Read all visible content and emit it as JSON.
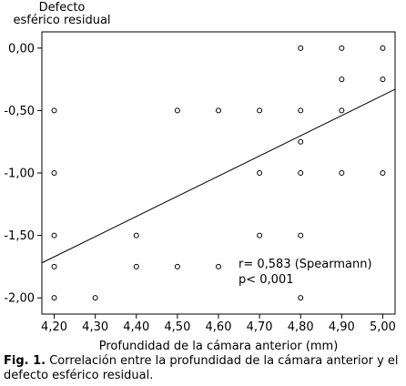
{
  "figure": {
    "caption_label": "Fig. 1.",
    "caption_text": "Correlación entre la profundidad de la cámara anterior  y el defecto esférico residual."
  },
  "chart_data": {
    "type": "scatter",
    "title": "",
    "xlabel": "Profundidad de la cámara anterior (mm)",
    "ylabel_line1": "Defecto",
    "ylabel_line2": "esférico residual",
    "xlim": [
      4.17,
      5.03
    ],
    "ylim": [
      -2.13,
      0.13
    ],
    "x_ticks": [
      4.2,
      4.3,
      4.4,
      4.5,
      4.6,
      4.7,
      4.8,
      4.9,
      5.0
    ],
    "x_tick_labels": [
      "4,20",
      "4,30",
      "4,40",
      "4,50",
      "4,60",
      "4,70",
      "4,80",
      "4,90",
      "5,00"
    ],
    "y_ticks": [
      0,
      -0.5,
      -1.0,
      -1.5,
      -2.0
    ],
    "y_tick_labels": [
      "0,00",
      "-0,50",
      "-1,00",
      "-1,50",
      "-2,00"
    ],
    "grid": false,
    "points": [
      {
        "x": 4.8,
        "y": 0.0
      },
      {
        "x": 4.9,
        "y": 0.0
      },
      {
        "x": 5.0,
        "y": 0.0
      },
      {
        "x": 4.9,
        "y": -0.25
      },
      {
        "x": 5.0,
        "y": -0.25
      },
      {
        "x": 4.2,
        "y": -0.5
      },
      {
        "x": 4.5,
        "y": -0.5
      },
      {
        "x": 4.6,
        "y": -0.5
      },
      {
        "x": 4.7,
        "y": -0.5
      },
      {
        "x": 4.8,
        "y": -0.5
      },
      {
        "x": 4.9,
        "y": -0.5
      },
      {
        "x": 4.8,
        "y": -0.75
      },
      {
        "x": 4.2,
        "y": -1.0
      },
      {
        "x": 4.7,
        "y": -1.0
      },
      {
        "x": 4.8,
        "y": -1.0
      },
      {
        "x": 4.9,
        "y": -1.0
      },
      {
        "x": 5.0,
        "y": -1.0
      },
      {
        "x": 4.2,
        "y": -1.5
      },
      {
        "x": 4.4,
        "y": -1.5
      },
      {
        "x": 4.7,
        "y": -1.5
      },
      {
        "x": 4.8,
        "y": -1.5
      },
      {
        "x": 4.2,
        "y": -1.75
      },
      {
        "x": 4.4,
        "y": -1.75
      },
      {
        "x": 4.5,
        "y": -1.75
      },
      {
        "x": 4.6,
        "y": -1.75
      },
      {
        "x": 4.2,
        "y": -2.0
      },
      {
        "x": 4.3,
        "y": -2.0
      },
      {
        "x": 4.8,
        "y": -2.0
      }
    ],
    "trendline": {
      "x": [
        4.17,
        5.03
      ],
      "y": [
        -1.72,
        -0.33
      ]
    },
    "annotations": [
      "r= 0,583 (Spearmann)",
      "p< 0,001"
    ]
  }
}
